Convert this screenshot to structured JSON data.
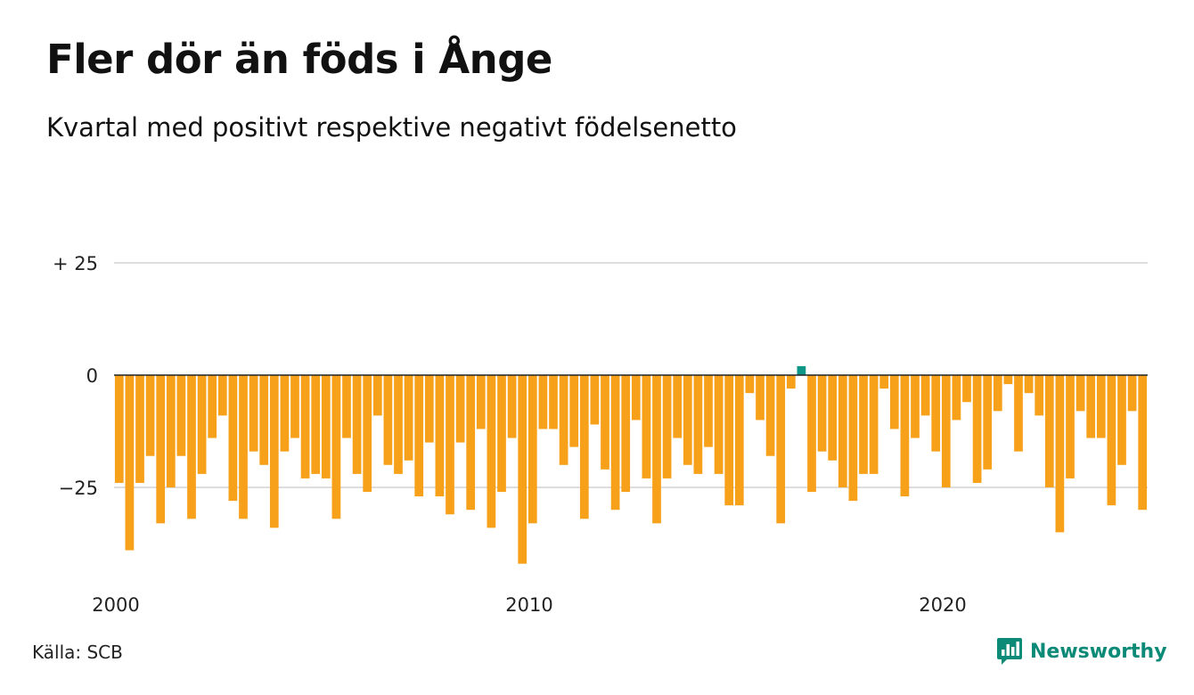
{
  "title": "Fler dör än föds i Ånge",
  "subtitle": "Kvartal med positivt respektive negativt födelsenetto",
  "source": "Källa: SCB",
  "brand": {
    "name": "Newsworthy",
    "logo_icon": "newsworthy-chart-logo-icon"
  },
  "colors": {
    "negative": "#f7a11a",
    "positive": "#0e9686",
    "gridline": "#dddddd",
    "zero_line": "#222222",
    "brand": "#0c8a78"
  },
  "chart_data": {
    "type": "bar",
    "title": "Fler dör än föds i Ånge",
    "subtitle": "Kvartal med positivt respektive negativt födelsenetto",
    "x_start": 2000,
    "x_step": 0.25,
    "x_ticks": [
      {
        "value": 2000,
        "label": "2000"
      },
      {
        "value": 2010,
        "label": "2010"
      },
      {
        "value": 2020,
        "label": "2020"
      }
    ],
    "y_ticks": [
      {
        "value": 25,
        "label": "+ 25"
      },
      {
        "value": 0,
        "label": "0"
      },
      {
        "value": -25,
        "label": "−25"
      }
    ],
    "ylim": [
      -43,
      25
    ],
    "grid": true,
    "values": [
      -24,
      -39,
      -24,
      -18,
      -33,
      -25,
      -18,
      -32,
      -22,
      -14,
      -9,
      -28,
      -32,
      -17,
      -20,
      -34,
      -17,
      -14,
      -23,
      -22,
      -23,
      -32,
      -14,
      -22,
      -26,
      -9,
      -20,
      -22,
      -19,
      -27,
      -15,
      -27,
      -31,
      -15,
      -30,
      -12,
      -34,
      -26,
      -14,
      -42,
      -33,
      -12,
      -12,
      -20,
      -16,
      -32,
      -11,
      -21,
      -30,
      -26,
      -10,
      -23,
      -33,
      -23,
      -14,
      -20,
      -22,
      -16,
      -22,
      -29,
      -29,
      -4,
      -10,
      -18,
      -33,
      -3,
      2,
      -26,
      -17,
      -19,
      -25,
      -28,
      -22,
      -22,
      -3,
      -12,
      -27,
      -14,
      -9,
      -17,
      -25,
      -10,
      -6,
      -24,
      -21,
      -8,
      -2,
      -17,
      -4,
      -9,
      -25,
      -35,
      -23,
      -8,
      -14,
      -14,
      -29,
      -20,
      -8,
      -30
    ]
  }
}
